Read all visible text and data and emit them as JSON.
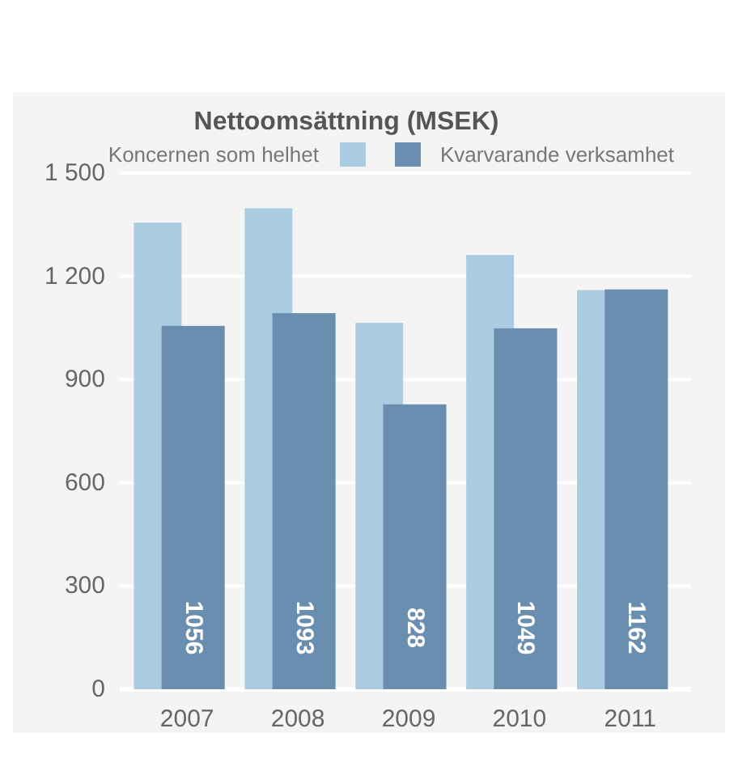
{
  "chart_data": {
    "type": "bar",
    "title": "Nettoomsättning (MSEK)",
    "categories": [
      "2007",
      "2008",
      "2009",
      "2010",
      "2011"
    ],
    "series": [
      {
        "name": "Koncernen som helhet",
        "color": "#abcbe0",
        "values": [
          1356,
          1398,
          1065,
          1262,
          1160
        ]
      },
      {
        "name": "Kvarvarande verksamhet",
        "color": "#6a8eb0",
        "values": [
          1056,
          1093,
          828,
          1049,
          1162
        ],
        "value_labels": [
          "1056",
          "1093",
          "828",
          "1049",
          "1162"
        ]
      }
    ],
    "ylim": [
      0,
      1500
    ],
    "yticks": [
      0,
      300,
      600,
      900,
      {
        "value": 1200,
        "label": "1 200"
      },
      {
        "value": 1500,
        "label": "1 500"
      }
    ],
    "grid": "y",
    "legend": "top"
  }
}
